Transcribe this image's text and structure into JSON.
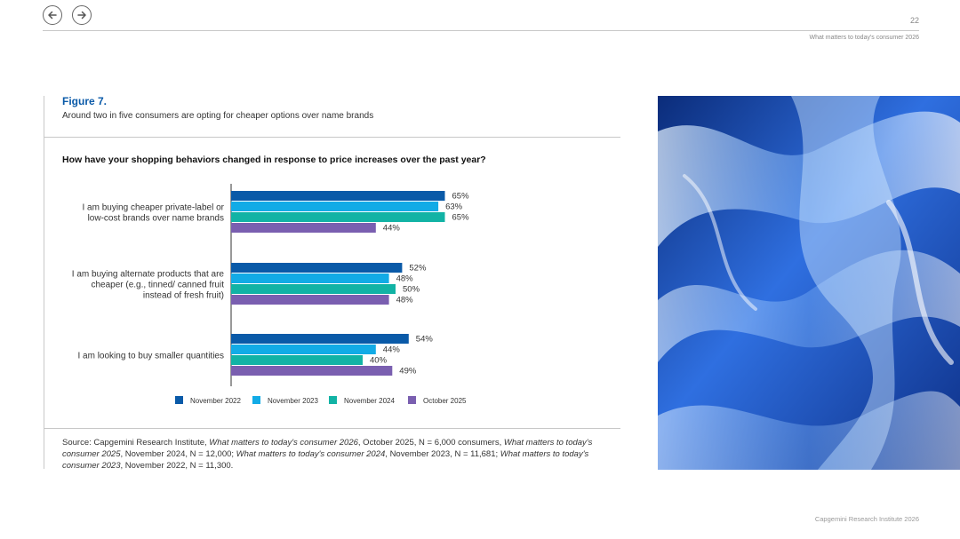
{
  "header": {
    "page_number": "22",
    "running_head": "What matters to today's consumer 2026"
  },
  "figure": {
    "label": "Figure 7.",
    "subtitle": "Around two in five consumers are opting for cheaper options over name brands"
  },
  "chart_data": {
    "type": "bar",
    "orientation": "horizontal",
    "title": "How have your shopping behaviors changed in response to price increases over the past year?",
    "categories": [
      [
        "I am buying cheaper private-label or",
        "low-cost brands over name brands"
      ],
      [
        "I am buying alternate products that are",
        "cheaper (e.g., tinned/ canned fruit",
        "instead of fresh fruit)"
      ],
      [
        "I am looking to buy smaller quantities"
      ]
    ],
    "series": [
      {
        "name": "November 2022",
        "color": "#0a5aa8",
        "values": [
          65,
          52,
          54
        ],
        "labels": [
          "65%",
          "52%",
          "54%"
        ]
      },
      {
        "name": "November 2023",
        "color": "#12abe6",
        "values": [
          63,
          48,
          44
        ],
        "labels": [
          "63%",
          "48%",
          "44%"
        ]
      },
      {
        "name": "November 2024",
        "color": "#12b3a5",
        "values": [
          65,
          50,
          40
        ],
        "labels": [
          "65%",
          "50%",
          "40%"
        ]
      },
      {
        "name": "October 2025",
        "color": "#7a5fb0",
        "values": [
          44,
          48,
          49
        ],
        "labels": [
          "44%",
          "48%",
          "49%"
        ]
      }
    ],
    "xlim": [
      0,
      100
    ],
    "legend_position": "bottom",
    "grid": false
  },
  "source": {
    "parts": [
      {
        "t": "Source: Capgemini Research Institute, ",
        "i": false
      },
      {
        "t": "What matters to today's consumer 2026",
        "i": true
      },
      {
        "t": ", October 2025, N = 6,000 consumers, ",
        "i": false
      },
      {
        "t": "What matters to today's consumer 2025",
        "i": true
      },
      {
        "t": ", November 2024, N = 12,000; ",
        "i": false
      },
      {
        "t": "What matters to today's consumer 2024",
        "i": true
      },
      {
        "t": ", November 2023, N = 11,681; ",
        "i": false
      },
      {
        "t": "What matters to today's consumer 2023",
        "i": true
      },
      {
        "t": ", November 2022, N = 11,300.",
        "i": false
      }
    ]
  },
  "footer": {
    "text": "Capgemini Research Institute 2026"
  }
}
